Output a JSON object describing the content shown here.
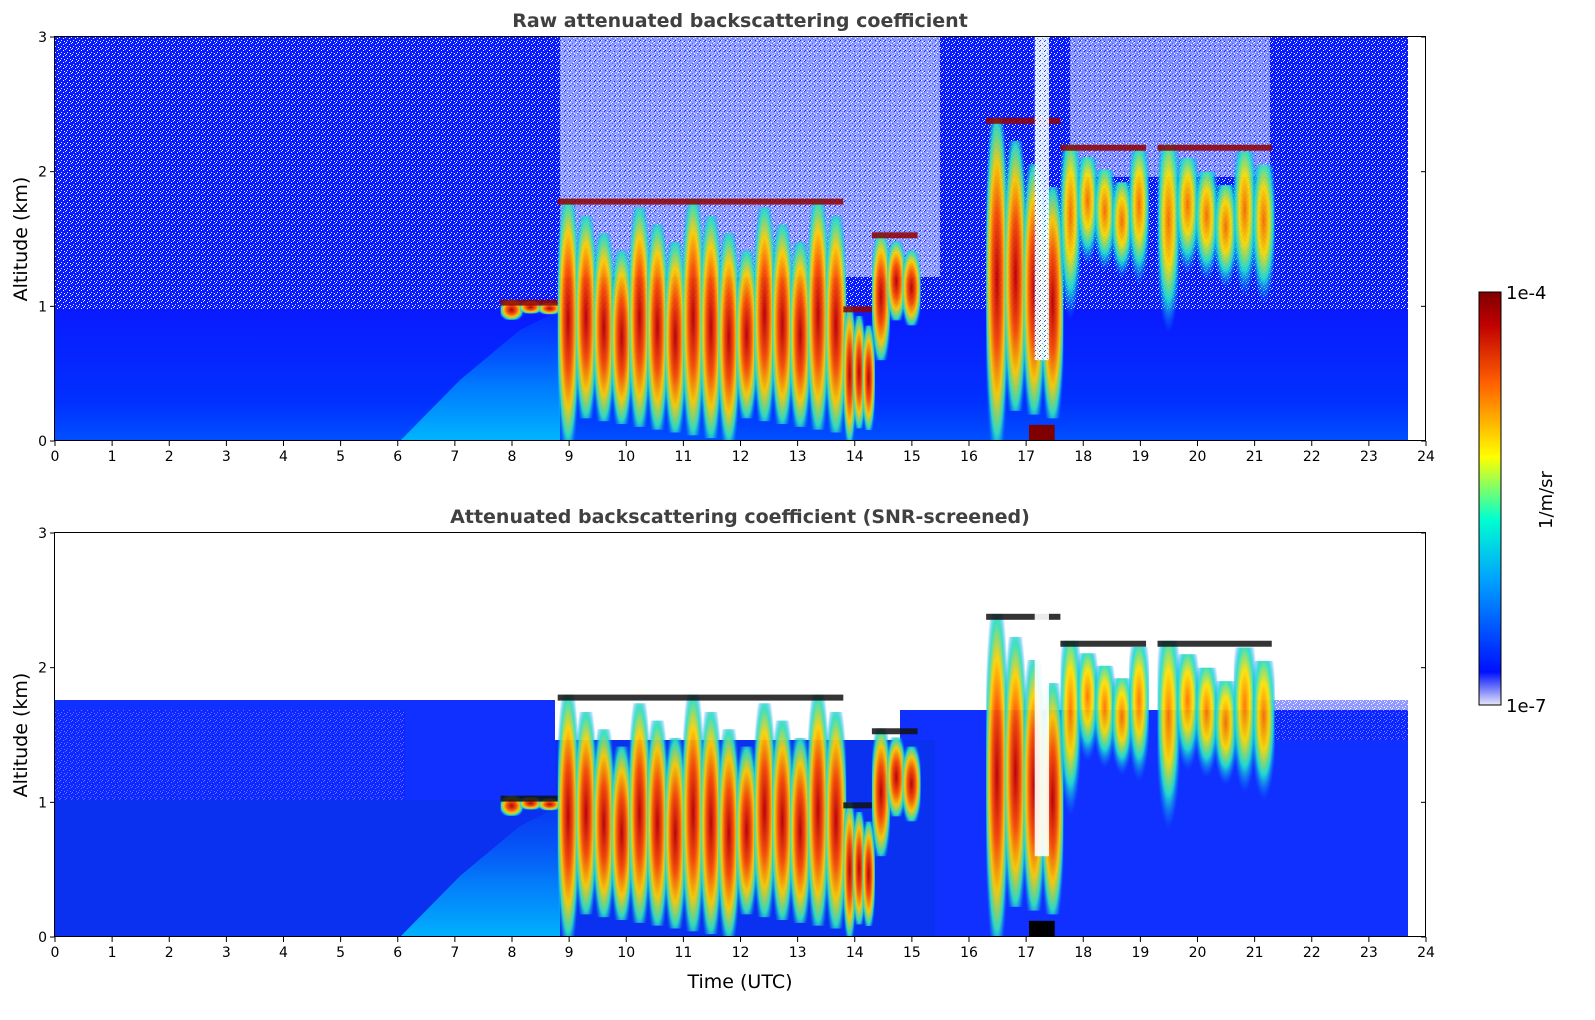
{
  "chart_data": [
    {
      "type": "heatmap",
      "title": "Raw attenuated backscattering coefficient",
      "xlabel": "",
      "ylabel": "Altitude (km)",
      "xlim": [
        0,
        24
      ],
      "ylim": [
        0,
        3
      ],
      "xticks": [
        "0",
        "1",
        "2",
        "3",
        "4",
        "5",
        "6",
        "7",
        "8",
        "9",
        "10",
        "11",
        "12",
        "13",
        "14",
        "15",
        "16",
        "17",
        "18",
        "19",
        "20",
        "21",
        "22",
        "23",
        "24"
      ],
      "yticks": [
        "0",
        "1",
        "2",
        "3"
      ],
      "data_end_time": 23.7,
      "layers": [
        {
          "t0": 7.8,
          "t1": 8.8,
          "base_km": 0.9,
          "top_km": 1.05,
          "level": "high"
        },
        {
          "t0": 8.8,
          "t1": 13.8,
          "base_km": 0.0,
          "top_km": 1.8,
          "level": "high"
        },
        {
          "t0": 13.8,
          "t1": 14.3,
          "base_km": 0.0,
          "top_km": 1.0,
          "level": "high"
        },
        {
          "t0": 14.3,
          "t1": 15.1,
          "base_km": 0.6,
          "top_km": 1.55,
          "level": "high"
        },
        {
          "t0": 16.3,
          "t1": 17.6,
          "base_km": 0.0,
          "top_km": 2.4,
          "level": "high"
        },
        {
          "t0": 17.6,
          "t1": 19.1,
          "base_km": 0.9,
          "top_km": 2.2,
          "level": "medium"
        },
        {
          "t0": 19.3,
          "t1": 21.3,
          "base_km": 0.8,
          "top_km": 2.2,
          "level": "medium"
        }
      ]
    },
    {
      "type": "heatmap",
      "title": "Attenuated backscattering coefficient (SNR-screened)",
      "xlabel": "Time (UTC)",
      "ylabel": "Altitude (km)",
      "xlim": [
        0,
        24
      ],
      "ylim": [
        0,
        3
      ],
      "xticks": [
        "0",
        "1",
        "2",
        "3",
        "4",
        "5",
        "6",
        "7",
        "8",
        "9",
        "10",
        "11",
        "12",
        "13",
        "14",
        "15",
        "16",
        "17",
        "18",
        "19",
        "20",
        "21",
        "22",
        "23",
        "24"
      ],
      "yticks": [
        "0",
        "1",
        "2",
        "3"
      ],
      "data_end_time": 23.7,
      "screened_top_km": 1.75,
      "screened_gap": {
        "t0": 8.7,
        "t1": 15.0,
        "top_km": 1.5
      }
    }
  ],
  "colorbar": {
    "label": "1/m/sr",
    "max_label": "1e-4",
    "min_label": "1e-7",
    "colormap": "jet",
    "colors": [
      "#e6e6f7",
      "#0010ff",
      "#00a0ff",
      "#00ffd0",
      "#ffff00",
      "#ff6000",
      "#c00000",
      "#800000"
    ]
  }
}
